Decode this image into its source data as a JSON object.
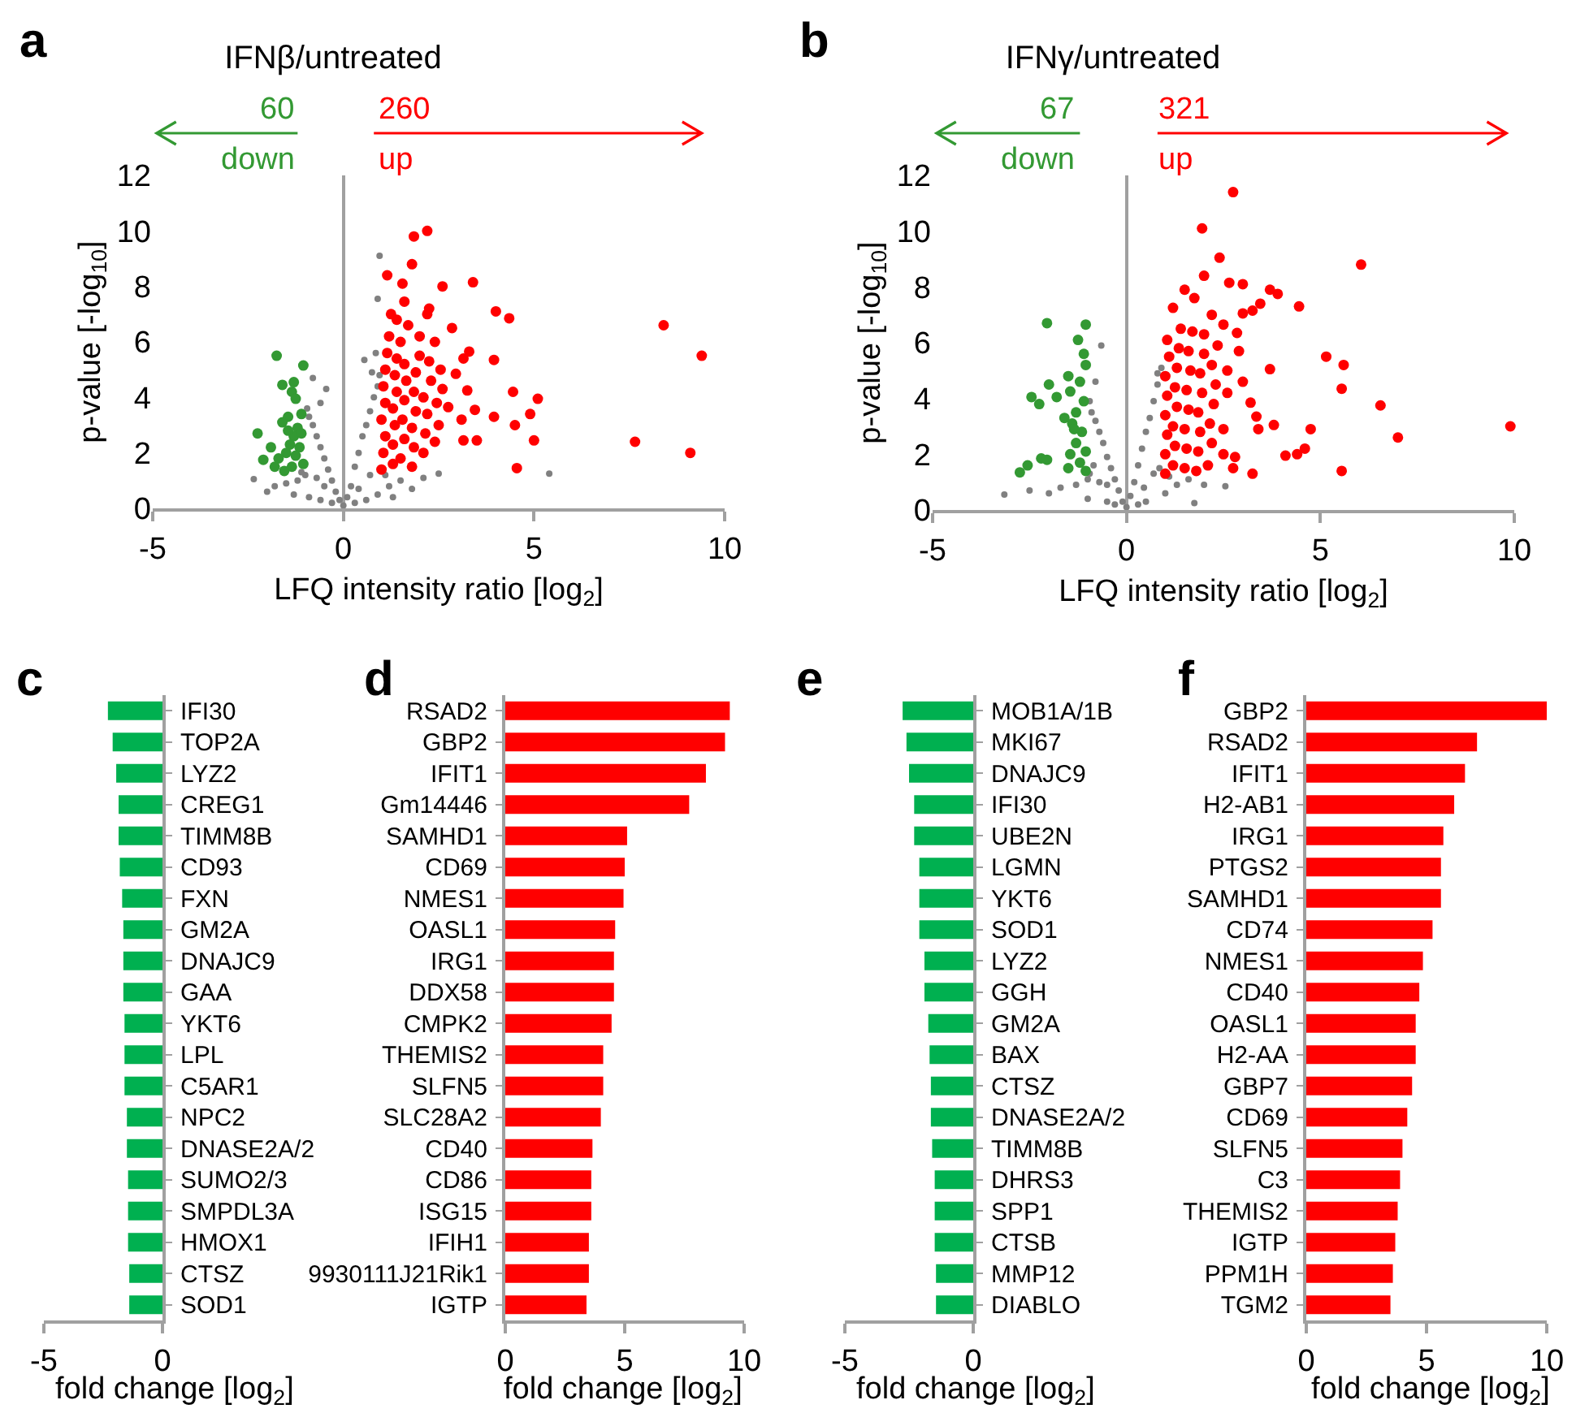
{
  "chart_data": [
    {
      "type": "scatter",
      "title": "IFNβ/untreated",
      "xlabel": "LFQ intensity ratio [log$_{2}$]",
      "ylabel": "p-value [-log$_{10}$]",
      "annotations": [
        "a",
        "60",
        "down",
        "260",
        "up"
      ],
      "marker": "circle",
      "xlim": [
        -5,
        10
      ],
      "xticks": [
        -5,
        0,
        5,
        10
      ],
      "ylim": [
        0,
        12
      ],
      "yticks": [
        0,
        2,
        4,
        6,
        8,
        10,
        12
      ],
      "series": [
        {
          "color": "#808080",
          "x": [
            0,
            -0.1,
            0.1,
            -0.2,
            0.2,
            -0.3,
            0.3,
            -0.4,
            0.4,
            -0.5,
            0.5,
            -0.6,
            0.6,
            -0.7,
            0.7,
            -0.8,
            0.8,
            -0.9,
            0.9,
            -0.95,
            0.95,
            -0.8,
            -0.45,
            0.55,
            0.75,
            0.95,
            0.9,
            -0.6,
            0.85,
            -1.0,
            -1.2,
            -1.5,
            -1.8,
            -2.35,
            -2.0,
            -1.3,
            -0.9,
            -0.6,
            0.6,
            0.9,
            1.2,
            1.5,
            1.8,
            2.1,
            2.5,
            5.4,
            1.3,
            -0.3,
            0.3,
            -0.7,
            0.7,
            -1.1,
            1.1,
            0.4,
            -0.5
          ],
          "values": [
            0.1,
            0.3,
            0.4,
            0.6,
            0.8,
            1.0,
            1.5,
            1.4,
            2.0,
            1.8,
            2.6,
            2.2,
            3.0,
            2.6,
            3.5,
            3.0,
            4.0,
            3.3,
            4.4,
            3.6,
            4.8,
            4.7,
            4.3,
            5.35,
            4.9,
            9.1,
            7.55,
            3.8,
            5.6,
            1.2,
            1.0,
            0.9,
            0.8,
            1.05,
            0.6,
            0.5,
            0.4,
            0.3,
            0.3,
            0.5,
            0.8,
            1.0,
            0.7,
            1.1,
            1.25,
            1.25,
            0.4,
            0.2,
            0.2,
            1.1,
            1.2,
            1.3,
            1.2,
            0.7,
            0.8
          ]
        },
        {
          "color": "#339933",
          "x": [
            -1.75,
            -1.05,
            -1.6,
            -1.3,
            -1.35,
            -1.25,
            -1.45,
            -1.6,
            -2.25,
            -2.1,
            -1.1,
            -1.2,
            -1.3,
            -1.4,
            -1.15,
            -1.5,
            -1.7,
            -1.25,
            -1.05,
            -1.35,
            -1.8,
            -1.55,
            -1.1,
            -1.9,
            -1.45
          ],
          "values": [
            5.5,
            5.15,
            4.45,
            4.55,
            4.2,
            3.95,
            3.3,
            3.1,
            2.7,
            1.75,
            3.4,
            2.9,
            2.6,
            2.3,
            2.2,
            2.0,
            1.8,
            1.9,
            1.6,
            1.5,
            1.5,
            1.35,
            2.7,
            2.2,
            2.8
          ]
        },
        {
          "color": "#ff0000",
          "x": [
            1.0,
            1.05,
            1.1,
            1.0,
            1.1,
            1.05,
            1.1,
            1.15,
            1.2,
            1.3,
            1.3,
            1.35,
            1.3,
            1.4,
            1.35,
            1.4,
            1.5,
            1.5,
            1.6,
            1.55,
            1.6,
            1.65,
            1.6,
            1.7,
            1.8,
            1.85,
            1.8,
            1.9,
            1.85,
            1.9,
            2.0,
            2.0,
            2.1,
            2.15,
            2.2,
            2.1,
            2.3,
            2.25,
            2.4,
            2.4,
            2.5,
            2.45,
            2.6,
            2.2,
            1.4,
            1.25,
            8.4,
            9.4,
            7.65,
            9.1,
            2.2,
            1.85,
            1.8,
            1.15,
            1.55,
            3.4,
            2.6,
            4.0,
            4.35,
            2.25,
            1.6,
            2.85,
            3.3,
            3.15,
            3.95,
            2.95,
            3.25,
            4.45,
            5.1,
            4.9,
            3.45,
            3.95,
            4.5,
            3.15,
            3.5,
            5.0,
            4.55,
            2.55,
            2.75,
            3.1
          ],
          "values": [
            1.4,
            2.0,
            2.6,
            3.2,
            3.8,
            4.4,
            5.0,
            5.6,
            6.2,
            1.6,
            2.3,
            3.0,
            3.6,
            4.2,
            4.8,
            5.4,
            6.0,
            1.8,
            2.5,
            3.2,
            3.9,
            4.6,
            5.2,
            6.6,
            1.5,
            2.2,
            2.9,
            3.5,
            4.2,
            4.9,
            5.5,
            6.2,
            2.0,
            2.7,
            3.4,
            4.0,
            4.6,
            5.3,
            6.0,
            2.4,
            3.0,
            3.8,
            4.3,
            7.0,
            6.8,
            7.0,
            6.6,
            5.5,
            2.4,
            2.0,
            10.0,
            9.8,
            8.8,
            8.4,
            8.1,
            8.15,
            8.0,
            7.1,
            6.85,
            7.2,
            7.45,
            6.5,
            5.65,
            5.4,
            5.35,
            4.85,
            4.25,
            4.2,
            3.95,
            3.4,
            3.55,
            3.3,
            3.0,
            2.45,
            2.45,
            2.45,
            1.45,
            5.0,
            3.65,
            3.2
          ]
        }
      ]
    },
    {
      "type": "scatter",
      "title": "IFNγ/untreated",
      "xlabel": "LFQ intensity ratio [log$_{2}$]",
      "ylabel": "p-value [-log$_{10}$]",
      "annotations": [
        "b",
        "67",
        "down",
        "321",
        "up"
      ],
      "marker": "circle",
      "xlim": [
        -5,
        10
      ],
      "xticks": [
        -5,
        0,
        5,
        10
      ],
      "ylim": [
        0,
        12
      ],
      "yticks": [
        0,
        2,
        4,
        6,
        8,
        10,
        12
      ],
      "series": [
        {
          "color": "#808080",
          "x": [
            0,
            -0.1,
            0.1,
            -0.2,
            0.2,
            -0.3,
            0.3,
            -0.4,
            0.4,
            -0.5,
            0.5,
            -0.6,
            0.6,
            -0.7,
            0.7,
            -0.8,
            0.8,
            -0.9,
            0.9,
            -0.95,
            0.8,
            -0.65,
            -0.8,
            -1.0,
            -1.3,
            -1.7,
            -2.0,
            -3.15,
            -2.5,
            -1.0,
            -0.5,
            0.5,
            1.0,
            1.3,
            1.75,
            2.0,
            2.55,
            1.6,
            -0.3,
            0.3,
            -0.7,
            0.7,
            -0.95,
            1.1,
            0.45,
            -0.5,
            0.85,
            -0.85
          ],
          "values": [
            0.1,
            0.3,
            0.5,
            0.7,
            1.0,
            1.1,
            1.6,
            1.5,
            2.2,
            1.9,
            2.8,
            2.4,
            3.3,
            2.8,
            3.9,
            3.2,
            4.5,
            3.5,
            5.1,
            3.9,
            4.9,
            5.9,
            4.6,
            1.1,
            0.9,
            0.8,
            0.6,
            0.55,
            0.7,
            0.4,
            0.3,
            0.3,
            0.6,
            0.9,
            0.25,
            0.9,
            0.85,
            1.1,
            0.2,
            0.2,
            1.0,
            1.3,
            1.3,
            1.2,
            0.8,
            0.9,
            1.5,
            1.6
          ]
        },
        {
          "color": "#339933",
          "x": [
            -2.05,
            -1.05,
            -1.25,
            -1.05,
            -1.5,
            -2.0,
            -2.45,
            -2.25,
            -1.8,
            -1.45,
            -2.2,
            -2.55,
            -2.75,
            -2.05,
            -1.2,
            -1.1,
            -1.3,
            -1.4,
            -1.15,
            -1.3,
            -1.05,
            -1.45,
            -1.2,
            -1.05,
            -1.5,
            -1.35,
            -1.6,
            -1.1
          ],
          "values": [
            6.7,
            6.65,
            6.1,
            5.2,
            4.8,
            4.5,
            4.05,
            3.8,
            4.05,
            4.25,
            1.85,
            1.6,
            1.35,
            1.8,
            4.6,
            3.9,
            3.5,
            3.1,
            2.8,
            2.4,
            2.1,
            2.0,
            1.7,
            1.4,
            1.5,
            2.9,
            3.3,
            5.6
          ]
        },
        {
          "color": "#ff0000",
          "x": [
            1.0,
            1.0,
            1.05,
            1.0,
            1.05,
            1.0,
            1.1,
            1.05,
            1.2,
            1.25,
            1.2,
            1.3,
            1.25,
            1.3,
            1.35,
            1.4,
            1.5,
            1.55,
            1.5,
            1.6,
            1.55,
            1.65,
            1.6,
            1.7,
            1.8,
            1.85,
            1.9,
            1.85,
            1.95,
            1.9,
            2.0,
            2.0,
            2.1,
            2.2,
            2.15,
            2.25,
            2.3,
            2.2,
            2.35,
            2.2,
            1.75,
            1.5,
            2.5,
            2.5,
            2.6,
            2.6,
            2.75,
            1.95,
            2.4,
            6.05,
            2.0,
            2.65,
            3.0,
            3.7,
            3.9,
            3.45,
            4.45,
            3.25,
            3.0,
            1.2,
            5.15,
            5.6,
            3.7,
            5.55,
            6.55,
            9.9,
            7.0,
            4.75,
            3.8,
            3.4,
            4.1,
            4.4,
            4.6,
            5.55,
            3.25,
            2.8,
            2.75,
            3.2,
            3.35,
            3.0,
            2.9,
            2.85,
            2.5
          ],
          "values": [
            1.3,
            2.0,
            2.7,
            3.4,
            4.1,
            4.8,
            5.5,
            6.1,
            1.6,
            2.3,
            3.0,
            3.7,
            4.4,
            5.1,
            5.8,
            6.5,
            1.5,
            2.2,
            2.9,
            3.6,
            4.3,
            5.0,
            5.7,
            6.4,
            1.4,
            2.1,
            2.8,
            3.5,
            4.2,
            4.9,
            5.6,
            6.3,
            1.6,
            2.4,
            3.1,
            3.8,
            4.5,
            5.2,
            5.9,
            7.0,
            7.6,
            7.9,
            2.0,
            2.9,
            4.2,
            5.0,
            11.4,
            10.1,
            9.05,
            8.8,
            8.4,
            8.15,
            8.1,
            7.9,
            7.75,
            7.4,
            7.3,
            7.15,
            7.05,
            7.25,
            5.5,
            5.2,
            5.05,
            4.35,
            3.75,
            3.0,
            2.6,
            2.9,
            3.05,
            2.9,
            1.95,
            2.0,
            2.2,
            1.4,
            1.3,
            1.9,
            1.5,
            3.85,
            3.35,
            4.6,
            5.7,
            6.35,
            6.65
          ]
        }
      ]
    },
    {
      "type": "bar",
      "orientation": "horizontal",
      "xlabel": "fold change [log$_{2}$]",
      "annotations": [
        "c"
      ],
      "color": "#00b050",
      "xlim": [
        -5,
        0
      ],
      "xticks": [
        -5,
        0
      ],
      "categories": [
        "IFI30",
        "TOP2A",
        "LYZ2",
        "CREG1",
        "TIMM8B",
        "CD93",
        "FXN",
        "GM2A",
        "DNAJC9",
        "GAA",
        "YKT6",
        "LPL",
        "C5AR1",
        "NPC2",
        "DNASE2A/2",
        "SUMO2/3",
        "SMPDL3A",
        "HMOX1",
        "CTSZ",
        "SOD1"
      ],
      "values": [
        -2.3,
        -2.1,
        -1.95,
        -1.85,
        -1.85,
        -1.8,
        -1.7,
        -1.65,
        -1.65,
        -1.65,
        -1.6,
        -1.6,
        -1.6,
        -1.5,
        -1.5,
        -1.45,
        -1.45,
        -1.45,
        -1.4,
        -1.4
      ]
    },
    {
      "type": "bar",
      "orientation": "horizontal",
      "xlabel": "fold change [log$_{2}$]",
      "annotations": [
        "d"
      ],
      "color": "#ff0000",
      "xlim": [
        0,
        10
      ],
      "xticks": [
        0,
        5,
        10
      ],
      "categories": [
        "RSAD2",
        "GBP2",
        "IFIT1",
        "Gm14446",
        "SAMHD1",
        "CD69",
        "NMES1",
        "OASL1",
        "IRG1",
        "DDX58",
        "CMPK2",
        "THEMIS2",
        "SLFN5",
        "SLC28A2",
        "CD40",
        "CD86",
        "ISG15",
        "IFIH1",
        "9930111J21Rik1",
        "IGTP"
      ],
      "values": [
        9.4,
        9.2,
        8.4,
        7.7,
        5.1,
        5.0,
        4.95,
        4.6,
        4.55,
        4.55,
        4.45,
        4.1,
        4.1,
        4.0,
        3.65,
        3.6,
        3.6,
        3.5,
        3.5,
        3.4
      ]
    },
    {
      "type": "bar",
      "orientation": "horizontal",
      "xlabel": "fold change [log$_{2}$]",
      "annotations": [
        "e"
      ],
      "color": "#00b050",
      "xlim": [
        -5,
        0
      ],
      "xticks": [
        -5,
        0
      ],
      "categories": [
        "MOB1A/1B",
        "MKI67",
        "DNAJC9",
        "IFI30",
        "UBE2N",
        "LGMN",
        "YKT6",
        "SOD1",
        "LYZ2",
        "GGH",
        "GM2A",
        "BAX",
        "CTSZ",
        "DNASE2A/2",
        "TIMM8B",
        "DHRS3",
        "SPP1",
        "CTSB",
        "MMP12",
        "DIABLO"
      ],
      "values": [
        -2.75,
        -2.6,
        -2.5,
        -2.3,
        -2.3,
        -2.1,
        -2.1,
        -2.1,
        -1.9,
        -1.9,
        -1.75,
        -1.7,
        -1.65,
        -1.65,
        -1.6,
        -1.5,
        -1.5,
        -1.5,
        -1.45,
        -1.45
      ]
    },
    {
      "type": "bar",
      "orientation": "horizontal",
      "xlabel": "fold change [log$_{2}$]",
      "annotations": [
        "f"
      ],
      "color": "#ff0000",
      "xlim": [
        0,
        10
      ],
      "xticks": [
        0,
        5,
        10
      ],
      "categories": [
        "GBP2",
        "RSAD2",
        "IFIT1",
        "H2-AB1",
        "IRG1",
        "PTGS2",
        "SAMHD1",
        "CD74",
        "NMES1",
        "CD40",
        "OASL1",
        "H2-AA",
        "GBP7",
        "CD69",
        "SLFN5",
        "C3",
        "THEMIS2",
        "IGTP",
        "PPM1H",
        "TGM2"
      ],
      "values": [
        10.0,
        7.1,
        6.6,
        6.15,
        5.7,
        5.6,
        5.6,
        5.25,
        4.85,
        4.7,
        4.55,
        4.55,
        4.4,
        4.2,
        4.0,
        3.9,
        3.8,
        3.7,
        3.6,
        3.5
      ]
    }
  ]
}
